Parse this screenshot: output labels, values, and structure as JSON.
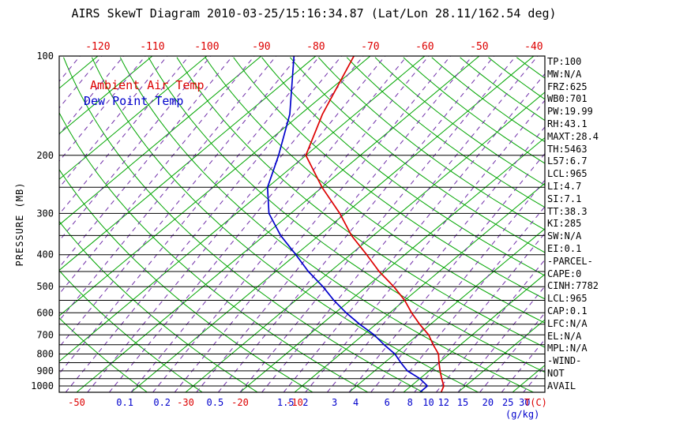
{
  "title": "AIRS SkewT Diagram 2010-03-25/15:16:34.87 (Lat/Lon 28.11/162.54 deg)",
  "legend": {
    "temp": "Ambient Air Temp",
    "dewpoint": "Dew Point Temp"
  },
  "axes": {
    "pressure_label": "PRESSURE (MB)",
    "pressure_ticks": [
      100,
      200,
      300,
      400,
      500,
      600,
      700,
      800,
      900,
      1000
    ],
    "top_temp_ticks": [
      -120,
      -110,
      -100,
      -90,
      -80,
      -70,
      -60,
      -50,
      -40
    ],
    "bottom_temp_ticks": [
      -50,
      -30,
      -20,
      -10
    ],
    "bottom_temp_unit": "T(C)",
    "mixing_ratio_ticks": [
      0.1,
      0.2,
      0.5,
      1.5,
      2,
      3,
      4,
      6,
      8,
      10,
      12,
      15,
      20,
      25,
      30
    ],
    "mixing_ratio_unit": "(g/kg)"
  },
  "stats": [
    "TP:100",
    "MW:N/A",
    "FRZ:625",
    "WB0:701",
    "PW:19.99",
    "RH:43.1",
    "MAXT:28.4",
    "TH:5463",
    "L57:6.7",
    "LCL:965",
    "LI:4.7",
    "SI:7.1",
    "TT:38.3",
    "KI:285",
    "SW:N/A",
    "EI:0.1",
    "-PARCEL-",
    "CAPE:0",
    "CINH:7782",
    "LCL:965",
    "CAP:0.1",
    "LFC:N/A",
    "EL:N/A",
    "MPL:N/A",
    "-WIND-",
    "NOT",
    "AVAIL"
  ],
  "colors": {
    "temp": "#dd0000",
    "dewpoint": "#0000cc",
    "green_line": "#00a500",
    "moist_line": "#6f2da8",
    "black": "#000000"
  },
  "chart_data": {
    "type": "line",
    "title": "AIRS SkewT Diagram",
    "datetime": "2010-03-25/15:16:34.87",
    "lat_lon": "28.11/162.54 deg",
    "xlabel": "T(C)",
    "ylabel": "PRESSURE (MB)",
    "y_scale": "log",
    "ylim": [
      100,
      1050
    ],
    "x_surface_range": [
      -50,
      40
    ],
    "skew": true,
    "points_format": "[pressure_mb, temperature_c]",
    "series": [
      {
        "key": "ambient-temp",
        "name": "Ambient Air Temp",
        "color": "#dd0000",
        "points": [
          [
            1050,
            17
          ],
          [
            1000,
            16
          ],
          [
            950,
            14
          ],
          [
            900,
            12
          ],
          [
            850,
            10
          ],
          [
            800,
            8
          ],
          [
            750,
            5
          ],
          [
            700,
            2
          ],
          [
            650,
            -2
          ],
          [
            600,
            -6
          ],
          [
            550,
            -10
          ],
          [
            500,
            -15
          ],
          [
            450,
            -21
          ],
          [
            400,
            -27
          ],
          [
            350,
            -34
          ],
          [
            300,
            -41
          ],
          [
            250,
            -50
          ],
          [
            200,
            -60
          ],
          [
            150,
            -66
          ],
          [
            100,
            -73
          ]
        ]
      },
      {
        "key": "dew-point",
        "name": "Dew Point Temp",
        "color": "#0000cc",
        "points": [
          [
            1050,
            13
          ],
          [
            1000,
            13
          ],
          [
            950,
            10
          ],
          [
            900,
            6
          ],
          [
            850,
            3
          ],
          [
            800,
            0
          ],
          [
            750,
            -4
          ],
          [
            700,
            -8
          ],
          [
            650,
            -13
          ],
          [
            600,
            -18
          ],
          [
            550,
            -23
          ],
          [
            500,
            -28
          ],
          [
            450,
            -34
          ],
          [
            400,
            -40
          ],
          [
            350,
            -47
          ],
          [
            300,
            -54
          ],
          [
            250,
            -60
          ],
          [
            200,
            -65
          ],
          [
            150,
            -72
          ],
          [
            100,
            -84
          ]
        ]
      }
    ],
    "background": {
      "isotherms_c": {
        "start": -120,
        "end": 40,
        "step": 10
      },
      "dry_adiabats_c": {
        "start": -40,
        "end": 180,
        "step": 10
      },
      "moist_adiabats_c": {
        "start": -100,
        "end": 36,
        "step": 4
      },
      "pressure_lines_mb": {
        "start": 200,
        "end": 1000,
        "step": 50
      }
    }
  }
}
